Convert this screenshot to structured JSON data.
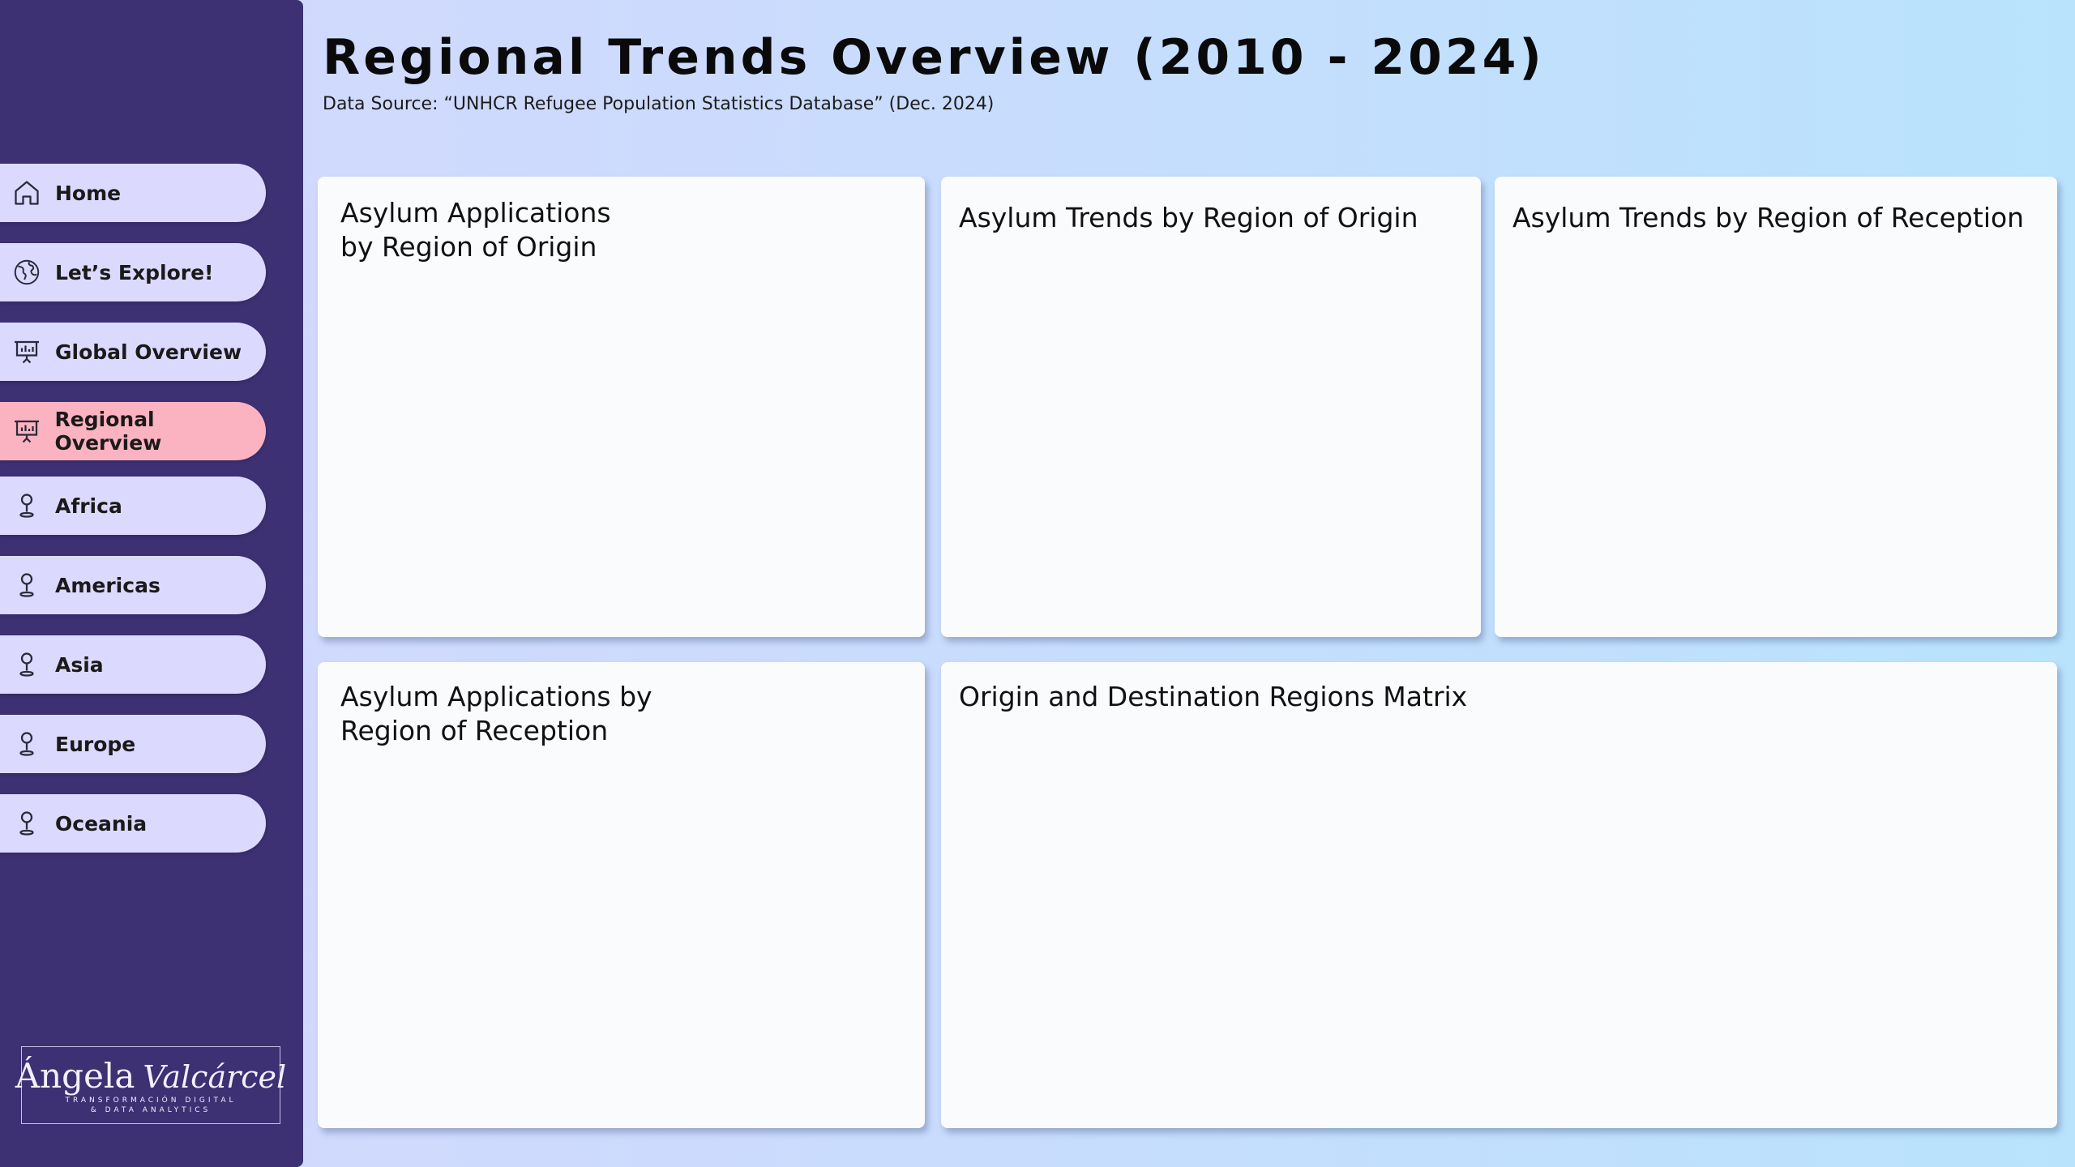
{
  "header": {
    "title": "Regional Trends Overview (2010 - 2024)",
    "subtitle": "Data Source:  “UNHCR Refugee Population Statistics Database” (Dec. 2024)"
  },
  "sidebar": {
    "items": [
      {
        "label": "Home",
        "icon": "home-icon",
        "active": false
      },
      {
        "label": "Let’s Explore!",
        "icon": "globe-icon",
        "active": false
      },
      {
        "label": "Global Overview",
        "icon": "presentation-chart-icon",
        "active": false
      },
      {
        "label": "Regional Overview",
        "icon": "presentation-chart-icon",
        "active": true
      },
      {
        "label": "Africa",
        "icon": "map-pin-icon",
        "active": false
      },
      {
        "label": "Americas",
        "icon": "map-pin-icon",
        "active": false
      },
      {
        "label": "Asia",
        "icon": "map-pin-icon",
        "active": false
      },
      {
        "label": "Europe",
        "icon": "map-pin-icon",
        "active": false
      },
      {
        "label": "Oceania",
        "icon": "map-pin-icon",
        "active": false
      }
    ],
    "logo": {
      "first": "Ángela",
      "last": "Valcárcel",
      "tagline_1": "TRANSFORMACIÓN DIGITAL",
      "tagline_2": "& DATA ANALYTICS"
    }
  },
  "cards": {
    "origin_applications": {
      "title": "Asylum Applications\nby Region of Origin"
    },
    "origin_trends": {
      "title": "Asylum Trends by Region of Origin"
    },
    "reception_trends": {
      "title": "Asylum Trends by Region of Reception"
    },
    "reception_applications": {
      "title": "Asylum Applications by\nRegion of Reception"
    },
    "matrix": {
      "title": "Origin and Destination Regions Matrix"
    }
  },
  "colors": {
    "sidebar": "#3d3073",
    "nav_item": "#dcd9fe",
    "nav_item_active": "#fcb3c1",
    "card": "#fafbfd"
  }
}
